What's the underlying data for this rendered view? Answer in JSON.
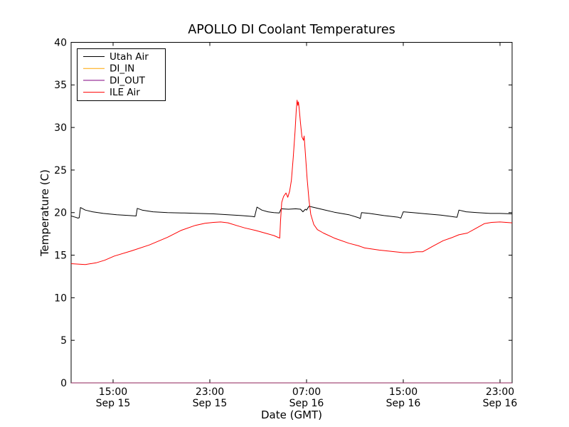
{
  "window": {
    "background": "#ffffff"
  },
  "chart_data": {
    "type": "line",
    "title": "APOLLO DI Coolant Temperatures",
    "xlabel": "Date (GMT)",
    "ylabel": "Temperature (C)",
    "ylim": [
      0,
      40
    ],
    "yticks": [
      0,
      5,
      10,
      15,
      20,
      25,
      30,
      35,
      40
    ],
    "grid": false,
    "tick_direction": "in",
    "axis_color": "#000000",
    "x_axis": {
      "unit": "hours since Sep 15 00:00 GMT",
      "xlim": [
        11.53,
        48.0
      ],
      "ticks": [
        {
          "hour": 15,
          "time": "15:00",
          "date": "Sep 15"
        },
        {
          "hour": 23,
          "time": "23:00",
          "date": "Sep 15"
        },
        {
          "hour": 31,
          "time": "07:00",
          "date": "Sep 16"
        },
        {
          "hour": 39,
          "time": "15:00",
          "date": "Sep 16"
        },
        {
          "hour": 47,
          "time": "23:00",
          "date": "Sep 16"
        }
      ]
    },
    "legend": {
      "position": "upper-left",
      "entries": [
        "Utah Air",
        "DI_IN",
        "DI_OUT",
        "ILE Air"
      ]
    },
    "series": [
      {
        "name": "Utah Air",
        "color": "#000000",
        "points": [
          [
            11.53,
            19.6
          ],
          [
            11.9,
            19.45
          ],
          [
            12.1,
            19.35
          ],
          [
            12.2,
            19.4
          ],
          [
            12.3,
            20.6
          ],
          [
            12.7,
            20.3
          ],
          [
            13.3,
            20.1
          ],
          [
            14.2,
            19.9
          ],
          [
            15.3,
            19.75
          ],
          [
            16.4,
            19.65
          ],
          [
            16.9,
            19.6
          ],
          [
            17.0,
            20.5
          ],
          [
            17.4,
            20.3
          ],
          [
            18.3,
            20.1
          ],
          [
            19.5,
            20.0
          ],
          [
            20.9,
            19.95
          ],
          [
            22.0,
            19.9
          ],
          [
            23.3,
            19.85
          ],
          [
            24.5,
            19.75
          ],
          [
            25.6,
            19.65
          ],
          [
            26.5,
            19.55
          ],
          [
            26.7,
            19.5
          ],
          [
            26.9,
            20.65
          ],
          [
            27.3,
            20.3
          ],
          [
            27.8,
            20.1
          ],
          [
            28.3,
            20.0
          ],
          [
            28.75,
            19.95
          ],
          [
            28.9,
            20.45
          ],
          [
            29.5,
            20.4
          ],
          [
            30.1,
            20.45
          ],
          [
            30.5,
            20.4
          ],
          [
            30.7,
            20.1
          ],
          [
            30.9,
            20.4
          ],
          [
            31.0,
            20.3
          ],
          [
            31.2,
            20.75
          ],
          [
            31.5,
            20.65
          ],
          [
            32.4,
            20.35
          ],
          [
            33.3,
            20.05
          ],
          [
            34.5,
            19.75
          ],
          [
            35.3,
            19.4
          ],
          [
            35.45,
            19.3
          ],
          [
            35.55,
            20.0
          ],
          [
            36.2,
            19.9
          ],
          [
            37.4,
            19.65
          ],
          [
            38.6,
            19.45
          ],
          [
            38.8,
            19.35
          ],
          [
            39.0,
            20.1
          ],
          [
            39.8,
            20.0
          ],
          [
            40.9,
            19.85
          ],
          [
            42.1,
            19.7
          ],
          [
            43.2,
            19.5
          ],
          [
            43.45,
            19.45
          ],
          [
            43.6,
            20.3
          ],
          [
            44.2,
            20.1
          ],
          [
            45.1,
            20.0
          ],
          [
            46.2,
            19.9
          ],
          [
            47.0,
            19.9
          ],
          [
            48.0,
            19.85
          ]
        ]
      },
      {
        "name": "DI_IN",
        "color": "#ffa500",
        "points": [
          [
            11.53,
            0
          ],
          [
            48.0,
            0
          ]
        ]
      },
      {
        "name": "DI_OUT",
        "color": "#800080",
        "points": [
          [
            11.53,
            0
          ],
          [
            48.0,
            0
          ]
        ]
      },
      {
        "name": "ILE Air",
        "color": "#ff0000",
        "points": [
          [
            11.53,
            14.0
          ],
          [
            12.1,
            13.95
          ],
          [
            12.7,
            13.9
          ],
          [
            13.6,
            14.1
          ],
          [
            14.3,
            14.4
          ],
          [
            15.1,
            14.9
          ],
          [
            16.5,
            15.5
          ],
          [
            18.0,
            16.2
          ],
          [
            19.5,
            17.1
          ],
          [
            20.6,
            17.9
          ],
          [
            21.8,
            18.5
          ],
          [
            22.6,
            18.75
          ],
          [
            23.3,
            18.85
          ],
          [
            23.9,
            18.9
          ],
          [
            24.5,
            18.8
          ],
          [
            25.3,
            18.45
          ],
          [
            25.9,
            18.2
          ],
          [
            26.8,
            17.9
          ],
          [
            27.7,
            17.55
          ],
          [
            28.3,
            17.3
          ],
          [
            28.7,
            17.05
          ],
          [
            28.78,
            17.0
          ],
          [
            28.85,
            19.0
          ],
          [
            28.95,
            21.2
          ],
          [
            29.1,
            21.9
          ],
          [
            29.3,
            22.3
          ],
          [
            29.45,
            21.8
          ],
          [
            29.6,
            22.5
          ],
          [
            29.75,
            23.8
          ],
          [
            29.9,
            26.5
          ],
          [
            30.05,
            29.5
          ],
          [
            30.15,
            32.0
          ],
          [
            30.22,
            33.2
          ],
          [
            30.28,
            32.6
          ],
          [
            30.33,
            33.0
          ],
          [
            30.4,
            32.1
          ],
          [
            30.5,
            30.5
          ],
          [
            30.62,
            28.9
          ],
          [
            30.75,
            28.5
          ],
          [
            30.8,
            29.0
          ],
          [
            30.9,
            27.0
          ],
          [
            31.05,
            24.0
          ],
          [
            31.2,
            21.5
          ],
          [
            31.35,
            19.8
          ],
          [
            31.6,
            18.6
          ],
          [
            31.9,
            18.0
          ],
          [
            32.4,
            17.6
          ],
          [
            33.3,
            17.0
          ],
          [
            34.5,
            16.4
          ],
          [
            35.3,
            16.1
          ],
          [
            35.8,
            15.85
          ],
          [
            37.0,
            15.6
          ],
          [
            38.3,
            15.4
          ],
          [
            39.0,
            15.3
          ],
          [
            39.6,
            15.3
          ],
          [
            40.1,
            15.4
          ],
          [
            40.6,
            15.4
          ],
          [
            41.0,
            15.7
          ],
          [
            41.5,
            16.1
          ],
          [
            42.3,
            16.7
          ],
          [
            43.0,
            17.05
          ],
          [
            43.6,
            17.4
          ],
          [
            44.3,
            17.6
          ],
          [
            45.0,
            18.15
          ],
          [
            45.7,
            18.7
          ],
          [
            46.3,
            18.85
          ],
          [
            47.0,
            18.9
          ],
          [
            48.0,
            18.8
          ]
        ]
      }
    ]
  }
}
